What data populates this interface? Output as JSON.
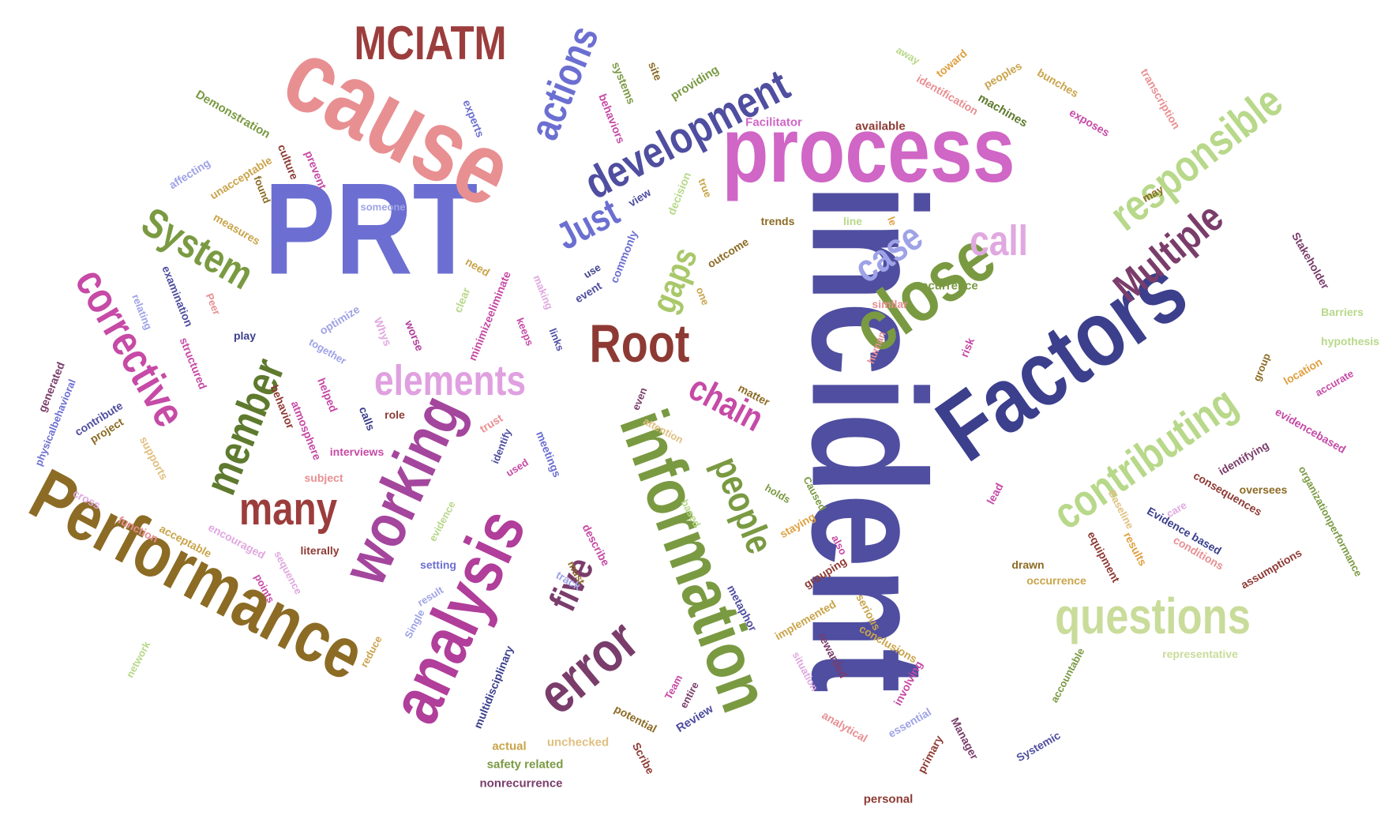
{
  "colors": {
    "background": "#ffffff",
    "olive": "#7a9a42",
    "pink_rose": "#e88f92",
    "blue": "#6c6fd1",
    "navy": "#3b3f8c",
    "magenta": "#c64aa6",
    "orchid": "#d066c6",
    "brown": "#8c6b24",
    "maroon": "#8e3a34",
    "plum": "#7a3d6b",
    "light_green": "#b8d88a",
    "lavender": "#b3a1e3"
  },
  "words": [
    {
      "text": "incident",
      "color": "#4f4ea0"
    },
    {
      "text": "Performance",
      "color": "#8c6b24"
    },
    {
      "text": "PRT",
      "color": "#6c6fd1"
    },
    {
      "text": "cause",
      "color": "#e88f92"
    },
    {
      "text": "process",
      "color": "#d066c6"
    },
    {
      "text": "Factors",
      "color": "#3b3f8c"
    },
    {
      "text": "information",
      "color": "#7a9a42"
    },
    {
      "text": "analysis",
      "color": "#b03e9a"
    },
    {
      "text": "working",
      "color": "#a4469d"
    },
    {
      "text": "close",
      "color": "#7a9a42"
    },
    {
      "text": "Root",
      "color": "#8e3a34"
    },
    {
      "text": "error",
      "color": "#7a3d6b"
    },
    {
      "text": "questions",
      "color": "#c9dc9a"
    },
    {
      "text": "development",
      "color": "#4f4ea0"
    },
    {
      "text": "MCIATM",
      "color": "#9c3d3d"
    },
    {
      "text": "responsible",
      "color": "#b8d88a"
    },
    {
      "text": "contributing",
      "color": "#b8d88a"
    },
    {
      "text": "Multiple",
      "color": "#7a3d6b"
    },
    {
      "text": "corrective",
      "color": "#c64aa6"
    },
    {
      "text": "elements",
      "color": "#e0a0e0"
    },
    {
      "text": "member",
      "color": "#5e7a2e"
    },
    {
      "text": "System",
      "color": "#7a9a42"
    },
    {
      "text": "actions",
      "color": "#6c6fd1"
    },
    {
      "text": "many",
      "color": "#9c3d3d"
    },
    {
      "text": "five",
      "color": "#7a3d6b"
    },
    {
      "text": "people",
      "color": "#7a9a42"
    },
    {
      "text": "chain",
      "color": "#c64aa6"
    },
    {
      "text": "case",
      "color": "#9ea2e6"
    },
    {
      "text": "call",
      "color": "#e0a8e0"
    },
    {
      "text": "Just",
      "color": "#6c6fd1"
    },
    {
      "text": "gaps",
      "color": "#a9c86a"
    },
    {
      "text": "Demonstration",
      "color": "#7a9a42"
    },
    {
      "text": "experts",
      "color": "#6c6fd1"
    },
    {
      "text": "systems",
      "color": "#7a9a42"
    },
    {
      "text": "site",
      "color": "#8c6b24"
    },
    {
      "text": "providing",
      "color": "#7a9a42"
    },
    {
      "text": "behaviors",
      "color": "#c64aa6"
    },
    {
      "text": "Facilitator",
      "color": "#d066c6"
    },
    {
      "text": "available",
      "color": "#8e3a34"
    },
    {
      "text": "machines",
      "color": "#5e7a2e"
    },
    {
      "text": "exposes",
      "color": "#c64aa6"
    },
    {
      "text": "bunches",
      "color": "#c9a44a"
    },
    {
      "text": "transcription",
      "color": "#e88f92"
    },
    {
      "text": "away",
      "color": "#b8d88a"
    },
    {
      "text": "toward",
      "color": "#e0a040"
    },
    {
      "text": "peoples",
      "color": "#c9a44a"
    },
    {
      "text": "identification",
      "color": "#e88f92"
    },
    {
      "text": "affecting",
      "color": "#9ea2e6"
    },
    {
      "text": "unacceptable",
      "color": "#c9a44a"
    },
    {
      "text": "culture",
      "color": "#8e3a34"
    },
    {
      "text": "prevent",
      "color": "#c64aa6"
    },
    {
      "text": "found",
      "color": "#8c6b24"
    },
    {
      "text": "someone",
      "color": "#9ea2e6"
    },
    {
      "text": "measures",
      "color": "#c9a44a"
    },
    {
      "text": "examination",
      "color": "#4f4ea0"
    },
    {
      "text": "relating",
      "color": "#9ea2e6"
    },
    {
      "text": "Peer",
      "color": "#e88f92"
    },
    {
      "text": "optimize",
      "color": "#9ea2e6"
    },
    {
      "text": "Whys",
      "color": "#e0a8e0"
    },
    {
      "text": "play",
      "color": "#3b3f8c"
    },
    {
      "text": "together",
      "color": "#9ea2e6"
    },
    {
      "text": "structured",
      "color": "#c64aa6"
    },
    {
      "text": "worse",
      "color": "#b03e9a"
    },
    {
      "text": "minimizeeliminate",
      "color": "#c64aa6"
    },
    {
      "text": "keeps",
      "color": "#c64aa6"
    },
    {
      "text": "links",
      "color": "#4f4ea0"
    },
    {
      "text": "clear",
      "color": "#b8d88a"
    },
    {
      "text": "making",
      "color": "#e0a8e0"
    },
    {
      "text": "need",
      "color": "#c9a44a"
    },
    {
      "text": "decision",
      "color": "#b8d88a"
    },
    {
      "text": "view",
      "color": "#4f4ea0"
    },
    {
      "text": "true",
      "color": "#c9a44a"
    },
    {
      "text": "trends",
      "color": "#8c6b24"
    },
    {
      "text": "line",
      "color": "#b8d88a"
    },
    {
      "text": "le",
      "color": "#e0a040"
    },
    {
      "text": "commonly",
      "color": "#6c6fd1"
    },
    {
      "text": "use",
      "color": "#3b3f8c"
    },
    {
      "text": "event",
      "color": "#4f4ea0"
    },
    {
      "text": "outcome",
      "color": "#8c6b24"
    },
    {
      "text": "one",
      "color": "#c9a44a"
    },
    {
      "text": "similar",
      "color": "#e88f92"
    },
    {
      "text": "recurrence",
      "color": "#7a9a42"
    },
    {
      "text": "may",
      "color": "#8c6b24"
    },
    {
      "text": "Stakeholder",
      "color": "#7a3d6b"
    },
    {
      "text": "Barriers",
      "color": "#b8d88a"
    },
    {
      "text": "hypothesis",
      "color": "#b8d88a"
    },
    {
      "text": "location",
      "color": "#e0a040"
    },
    {
      "text": "accurate",
      "color": "#c64aa6"
    },
    {
      "text": "group",
      "color": "#8c6b24"
    },
    {
      "text": "evidencebased",
      "color": "#c64aa6"
    },
    {
      "text": "identifying",
      "color": "#7a3d6b"
    },
    {
      "text": "organizationperformance",
      "color": "#7a9a42"
    },
    {
      "text": "risk",
      "color": "#c64aa6"
    },
    {
      "text": "human",
      "color": "#e88f92"
    },
    {
      "text": "matter",
      "color": "#8c6b24"
    },
    {
      "text": "even",
      "color": "#7a3d6b"
    },
    {
      "text": "attention",
      "color": "#e0c080"
    },
    {
      "text": "generated",
      "color": "#7a3d6b"
    },
    {
      "text": "physicalbehavioral",
      "color": "#6c6fd1"
    },
    {
      "text": "contribute",
      "color": "#4f4ea0"
    },
    {
      "text": "project",
      "color": "#8c6b24"
    },
    {
      "text": "helped",
      "color": "#c64aa6"
    },
    {
      "text": "behavior",
      "color": "#8e3a34"
    },
    {
      "text": "atmosphere",
      "color": "#c64aa6"
    },
    {
      "text": "calls",
      "color": "#3b3f8c"
    },
    {
      "text": "role",
      "color": "#8e3a34"
    },
    {
      "text": "interviews",
      "color": "#c64aa6"
    },
    {
      "text": "trust",
      "color": "#e88f92"
    },
    {
      "text": "identify",
      "color": "#4f4ea0"
    },
    {
      "text": "meetings",
      "color": "#6c6fd1"
    },
    {
      "text": "used",
      "color": "#c64aa6"
    },
    {
      "text": "supports",
      "color": "#e0c080"
    },
    {
      "text": "subject",
      "color": "#e88f92"
    },
    {
      "text": "cross",
      "color": "#e0a8e0"
    },
    {
      "text": "function",
      "color": "#e88f92"
    },
    {
      "text": "acceptable",
      "color": "#c9a44a"
    },
    {
      "text": "encouraged",
      "color": "#e0a8e0"
    },
    {
      "text": "literally",
      "color": "#8e3a34"
    },
    {
      "text": "sequence",
      "color": "#e0a8e0"
    },
    {
      "text": "points",
      "color": "#c64aa6"
    },
    {
      "text": "evidence",
      "color": "#b8d88a"
    },
    {
      "text": "setting",
      "color": "#6c6fd1"
    },
    {
      "text": "describe",
      "color": "#c64aa6"
    },
    {
      "text": "must",
      "color": "#8c6b24"
    },
    {
      "text": "track",
      "color": "#9ea2e6"
    },
    {
      "text": "result",
      "color": "#9ea2e6"
    },
    {
      "text": "Single",
      "color": "#9ea2e6"
    },
    {
      "text": "reduce",
      "color": "#c9a44a"
    },
    {
      "text": "network",
      "color": "#b8d88a"
    },
    {
      "text": "multidisciplinary",
      "color": "#3b3f8c"
    },
    {
      "text": "actual",
      "color": "#c9a44a"
    },
    {
      "text": "safety related",
      "color": "#7a9a42"
    },
    {
      "text": "nonrecurrence",
      "color": "#7a3d6b"
    },
    {
      "text": "unchecked",
      "color": "#e0c080"
    },
    {
      "text": "potential",
      "color": "#8c6b24"
    },
    {
      "text": "Scribe",
      "color": "#8e3a34"
    },
    {
      "text": "Review",
      "color": "#4f4ea0"
    },
    {
      "text": "entire",
      "color": "#7a3d6b"
    },
    {
      "text": "Team",
      "color": "#c64aa6"
    },
    {
      "text": "metaphor",
      "color": "#4f4ea0"
    },
    {
      "text": "based",
      "color": "#b8d88a"
    },
    {
      "text": "holds",
      "color": "#7a9a42"
    },
    {
      "text": "Caused",
      "color": "#7a9a42"
    },
    {
      "text": "staying",
      "color": "#e0a040"
    },
    {
      "text": "also",
      "color": "#c64aa6"
    },
    {
      "text": "grouping",
      "color": "#8e3a34"
    },
    {
      "text": "serious",
      "color": "#c9a44a"
    },
    {
      "text": "implemented",
      "color": "#c9a44a"
    },
    {
      "text": "rewarded",
      "color": "#7a3d6b"
    },
    {
      "text": "situation",
      "color": "#e0a8e0"
    },
    {
      "text": "analytical",
      "color": "#e88f92"
    },
    {
      "text": "conclusions",
      "color": "#c9a44a"
    },
    {
      "text": "involving",
      "color": "#c64aa6"
    },
    {
      "text": "essential",
      "color": "#9ea2e6"
    },
    {
      "text": "primary",
      "color": "#8e3a34"
    },
    {
      "text": "personal",
      "color": "#8e3a34"
    },
    {
      "text": "Manager",
      "color": "#7a3d6b"
    },
    {
      "text": "Systemic",
      "color": "#4f4ea0"
    },
    {
      "text": "accountable",
      "color": "#7a9a42"
    },
    {
      "text": "representative",
      "color": "#c9dc9a"
    },
    {
      "text": "lead",
      "color": "#c64aa6"
    },
    {
      "text": "drawn",
      "color": "#8c6b24"
    },
    {
      "text": "occurrence",
      "color": "#c9a44a"
    },
    {
      "text": "equipment",
      "color": "#8e3a34"
    },
    {
      "text": "Baseline",
      "color": "#e0c080"
    },
    {
      "text": "results",
      "color": "#e0a040"
    },
    {
      "text": "care",
      "color": "#e0a8e0"
    },
    {
      "text": "conditions",
      "color": "#e88f92"
    },
    {
      "text": "consequences",
      "color": "#8e3a34"
    },
    {
      "text": "oversees",
      "color": "#8c6b24"
    },
    {
      "text": "Evidence based",
      "color": "#3b3f8c"
    },
    {
      "text": "assumptions",
      "color": "#8e3a34"
    }
  ]
}
